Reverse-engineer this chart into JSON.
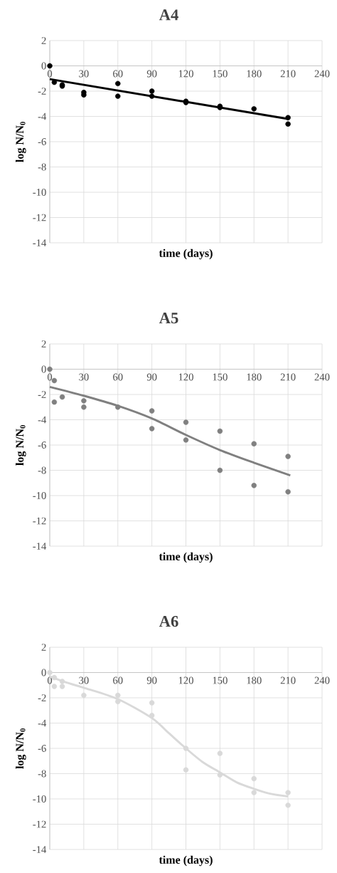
{
  "chart_data": [
    {
      "type": "scatter",
      "title": "A4",
      "xlabel": "time (days)",
      "ylabel": "log N/N$_{0}$",
      "xlim": [
        0,
        240
      ],
      "ylim": [
        -14,
        2
      ],
      "xticks": [
        0,
        30,
        60,
        90,
        120,
        150,
        180,
        210,
        240
      ],
      "yticks": [
        2,
        0,
        -2,
        -4,
        -6,
        -8,
        -10,
        -12,
        -14
      ],
      "grid": true,
      "series": [
        {
          "marker": "circle",
          "color": "#000000",
          "x": [
            0,
            4,
            11,
            11,
            30,
            30,
            60,
            60,
            90,
            90,
            120,
            120,
            150,
            150,
            180,
            210,
            210
          ],
          "values": [
            0,
            -1.3,
            -1.5,
            -1.6,
            -2.1,
            -2.3,
            -1.4,
            -2.4,
            -2.0,
            -2.4,
            -2.8,
            -2.9,
            -3.2,
            -3.3,
            -3.4,
            -4.1,
            -4.6
          ]
        },
        {
          "type": "line",
          "marker": "none",
          "color": "#000000",
          "x": [
            0,
            210
          ],
          "values": [
            -1.05,
            -4.2
          ]
        }
      ]
    },
    {
      "type": "scatter",
      "title": "A5",
      "xlabel": "time (days)",
      "ylabel": "log N/N$_{0}$",
      "xlim": [
        0,
        240
      ],
      "ylim": [
        -14,
        2
      ],
      "xticks": [
        0,
        30,
        60,
        90,
        120,
        150,
        180,
        210,
        240
      ],
      "yticks": [
        2,
        0,
        -2,
        -4,
        -6,
        -8,
        -10,
        -12,
        -14
      ],
      "grid": true,
      "series": [
        {
          "marker": "circle",
          "color": "#808080",
          "x": [
            0,
            4,
            4,
            11,
            30,
            30,
            60,
            90,
            90,
            120,
            120,
            150,
            150,
            180,
            180,
            210,
            210
          ],
          "values": [
            0,
            -0.9,
            -2.6,
            -2.2,
            -2.5,
            -3.0,
            -3.0,
            -3.3,
            -4.7,
            -4.2,
            -5.6,
            -4.9,
            -8.0,
            -5.9,
            -9.2,
            -6.9,
            -9.7
          ]
        },
        {
          "type": "line",
          "marker": "none",
          "color": "#808080",
          "x": [
            0,
            30,
            60,
            90,
            120,
            150,
            180,
            212
          ],
          "values": [
            -1.4,
            -2.1,
            -2.9,
            -3.9,
            -5.2,
            -6.4,
            -7.4,
            -8.4
          ]
        }
      ]
    },
    {
      "type": "scatter",
      "title": "A6",
      "xlabel": "time (days)",
      "ylabel": "log N/N$_{0}$",
      "xlim": [
        0,
        240
      ],
      "ylim": [
        -14,
        2
      ],
      "xticks": [
        0,
        30,
        60,
        90,
        120,
        150,
        180,
        210,
        240
      ],
      "yticks": [
        2,
        0,
        -2,
        -4,
        -6,
        -8,
        -10,
        -12,
        -14
      ],
      "grid": true,
      "series": [
        {
          "marker": "circle",
          "color": "#d9d9d9",
          "x": [
            0,
            4,
            4,
            11,
            11,
            30,
            60,
            60,
            90,
            90,
            120,
            120,
            150,
            150,
            180,
            180,
            210,
            210
          ],
          "values": [
            0,
            -0.4,
            -1.1,
            -0.7,
            -1.1,
            -1.8,
            -1.8,
            -2.3,
            -2.4,
            -3.4,
            -6.0,
            -7.7,
            -6.4,
            -8.1,
            -8.4,
            -9.5,
            -9.5,
            -10.5
          ]
        },
        {
          "type": "line",
          "marker": "none",
          "color": "#d9d9d9",
          "x": [
            0,
            15,
            30,
            60,
            90,
            105,
            120,
            135,
            150,
            165,
            180,
            195,
            210
          ],
          "values": [
            -0.3,
            -0.8,
            -1.2,
            -2.1,
            -3.6,
            -4.8,
            -6.0,
            -7.1,
            -7.9,
            -8.7,
            -9.2,
            -9.6,
            -9.8
          ]
        }
      ]
    }
  ]
}
